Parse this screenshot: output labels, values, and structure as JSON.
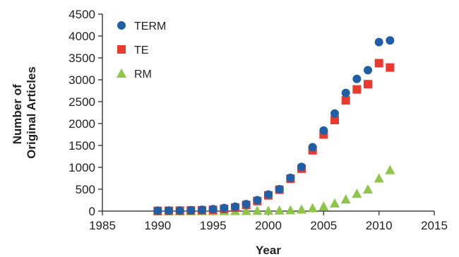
{
  "chart_data": {
    "type": "scatter",
    "xlabel": "Year",
    "ylabel_lines": [
      "Number of",
      "Original Articles"
    ],
    "xlim": [
      1985,
      2015
    ],
    "ylim": [
      0,
      4500
    ],
    "xticks": [
      1985,
      1990,
      1995,
      2000,
      2005,
      2010,
      2015
    ],
    "yticks": [
      0,
      500,
      1000,
      1500,
      2000,
      2500,
      3000,
      3500,
      4000,
      4500
    ],
    "grid": false,
    "legend_position": "top-left",
    "series": [
      {
        "name": "TERM",
        "marker": "circle",
        "color": "#1f5fa6",
        "x": [
          1990,
          1991,
          1992,
          1993,
          1994,
          1995,
          1996,
          1997,
          1998,
          1999,
          2000,
          2001,
          2002,
          2003,
          2004,
          2005,
          2006,
          2007,
          2008,
          2009,
          2010,
          2011
        ],
        "y": [
          10,
          12,
          15,
          20,
          30,
          45,
          70,
          100,
          160,
          250,
          380,
          500,
          760,
          1010,
          1460,
          1840,
          2230,
          2700,
          3020,
          3220,
          3860,
          3900
        ]
      },
      {
        "name": "TE",
        "marker": "square",
        "color": "#e83a2e",
        "x": [
          1990,
          1991,
          1992,
          1993,
          1994,
          1995,
          1996,
          1997,
          1998,
          1999,
          2000,
          2001,
          2002,
          2003,
          2004,
          2005,
          2006,
          2007,
          2008,
          2009,
          2010,
          2011
        ],
        "y": [
          5,
          8,
          10,
          15,
          20,
          30,
          50,
          80,
          140,
          230,
          360,
          490,
          740,
          970,
          1390,
          1750,
          2080,
          2530,
          2780,
          2900,
          3380,
          3280
        ]
      },
      {
        "name": "RM",
        "marker": "triangle",
        "color": "#8ec648",
        "x": [
          1990,
          1991,
          1992,
          1993,
          1994,
          1995,
          1996,
          1997,
          1998,
          1999,
          2000,
          2001,
          2002,
          2003,
          2004,
          2005,
          2006,
          2007,
          2008,
          2009,
          2010,
          2011
        ],
        "y": [
          2,
          2,
          3,
          3,
          4,
          5,
          5,
          6,
          8,
          10,
          12,
          18,
          25,
          40,
          70,
          110,
          180,
          270,
          400,
          500,
          750,
          940
        ]
      }
    ]
  }
}
